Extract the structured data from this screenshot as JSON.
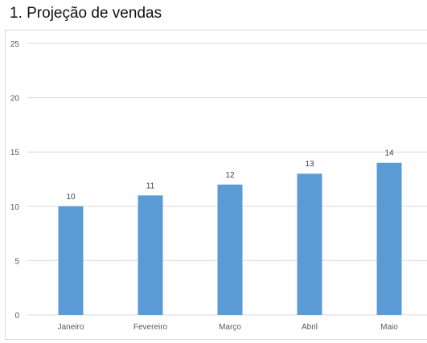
{
  "page": {
    "title": "1. Projeção de vendas"
  },
  "chart_data": {
    "type": "bar",
    "title": "",
    "xlabel": "",
    "ylabel": "",
    "categories": [
      "Janeiro",
      "Fevereiro",
      "Março",
      "Abril",
      "Maio"
    ],
    "series": [
      {
        "values": [
          10,
          11,
          12,
          13,
          14
        ]
      }
    ],
    "data_labels": [
      "10",
      "11",
      "12",
      "13",
      "14"
    ],
    "ylim": [
      0,
      25
    ],
    "yticks": [
      0,
      5,
      10,
      15,
      20,
      25
    ],
    "ytick_labels": [
      "0",
      "5",
      "10",
      "15",
      "20",
      "25"
    ],
    "grid": true,
    "legend": "none",
    "bar_color": "#5b9bd5",
    "grid_color": "#d9d9d9"
  }
}
